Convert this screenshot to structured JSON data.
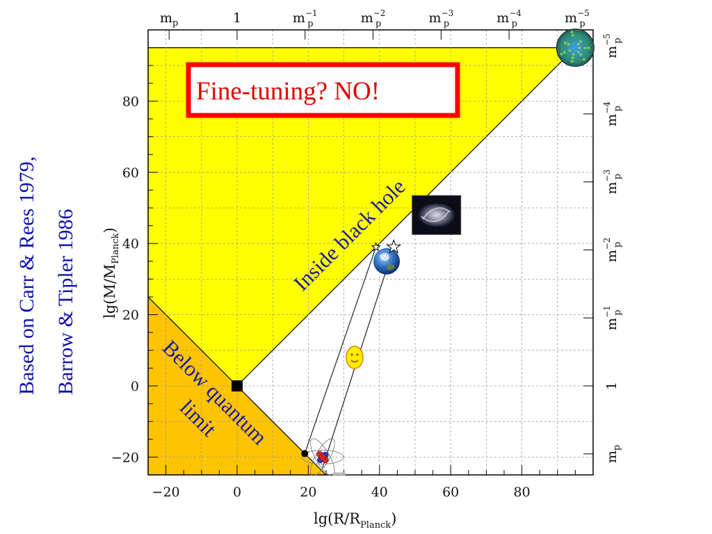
{
  "chart_data": {
    "type": "area",
    "title": "",
    "xlabel": "lg(R/R_Planck)",
    "ylabel": "lg(M/M_Planck)",
    "xlim": [
      -25,
      100
    ],
    "ylim": [
      -25,
      100
    ],
    "x_ticks": [
      "−20",
      "0",
      "20",
      "40",
      "60",
      "80"
    ],
    "y_ticks": [
      "−20",
      "0",
      "20",
      "40",
      "60",
      "80"
    ],
    "grid": true,
    "top_axis_labels": [
      {
        "base": "m",
        "sub": "p",
        "sup": ""
      },
      {
        "base": "1",
        "sub": "",
        "sup": ""
      },
      {
        "base": "m",
        "sub": "p",
        "sup": "−1"
      },
      {
        "base": "m",
        "sub": "p",
        "sup": "−2"
      },
      {
        "base": "m",
        "sub": "p",
        "sup": "−3"
      },
      {
        "base": "m",
        "sub": "p",
        "sup": "−4"
      },
      {
        "base": "m",
        "sub": "p",
        "sup": "−5"
      }
    ],
    "right_axis_labels": [
      {
        "base": "m",
        "sub": "p",
        "sup": ""
      },
      {
        "base": "1",
        "sub": "",
        "sup": ""
      },
      {
        "base": "m",
        "sub": "p",
        "sup": "−1"
      },
      {
        "base": "m",
        "sub": "p",
        "sup": "−2"
      },
      {
        "base": "m",
        "sub": "p",
        "sup": "−3"
      },
      {
        "base": "m",
        "sub": "p",
        "sup": "−4"
      },
      {
        "base": "m",
        "sub": "p",
        "sup": "−5"
      }
    ],
    "regions": [
      {
        "label": "Inside black hole",
        "color": "#ffff00",
        "boundary": "lg M = lg R",
        "points": [
          [
            -25,
            -25
          ],
          [
            0,
            0
          ],
          [
            95,
            95
          ],
          [
            -25,
            95
          ]
        ]
      },
      {
        "label": "Below quantum limit",
        "color": "#ffc400",
        "boundary": "lg M = -lg R",
        "points": [
          [
            -25,
            25
          ],
          [
            0,
            0
          ],
          [
            25,
            -25
          ],
          [
            -25,
            -25
          ]
        ]
      }
    ],
    "markers": [
      {
        "name": "planck-point",
        "x": 0,
        "y": 0,
        "shape": "square"
      },
      {
        "name": "atom-dot",
        "x": 19,
        "y": -19,
        "shape": "dot"
      },
      {
        "name": "star-open",
        "x": 44,
        "y": 39,
        "shape": "star"
      },
      {
        "name": "star-small",
        "x": 39,
        "y": 39,
        "shape": "star"
      }
    ],
    "object_icons": [
      {
        "name": "universe",
        "x": 95,
        "y": 95
      },
      {
        "name": "galaxy",
        "x": 56,
        "y": 48
      },
      {
        "name": "earth",
        "x": 42,
        "y": 35
      },
      {
        "name": "human",
        "x": 33,
        "y": 8
      },
      {
        "name": "atom",
        "x": 24,
        "y": -20
      }
    ],
    "connector_lines": [
      {
        "from": [
          19,
          -19
        ],
        "to": [
          39,
          39
        ]
      },
      {
        "from": [
          24,
          -23
        ],
        "to": [
          44,
          39
        ]
      }
    ]
  },
  "labels": {
    "inside_black_hole": "Inside black hole",
    "below_quantum_line1": "Below quantum",
    "below_quantum_line2": "limit",
    "fine_tuning": "Fine-tuning? NO!",
    "credit_line1": "Based on Carr & Rees 1979,",
    "credit_line2": "Barrow & Tipler 1986",
    "ylabel_prefix": "lg(M/M",
    "ylabel_sub": "Planck",
    "ylabel_suffix": ")",
    "xlabel_prefix": "lg(R/R",
    "xlabel_sub": "Planck",
    "xlabel_suffix": ")"
  },
  "colors": {
    "black_hole_region": "#ffff00",
    "quantum_region": "#ffc400",
    "callout_border": "#ff0000",
    "callout_text": "#e00000",
    "credit_text": "#1010b0",
    "region_text": "#1a1aa0"
  }
}
